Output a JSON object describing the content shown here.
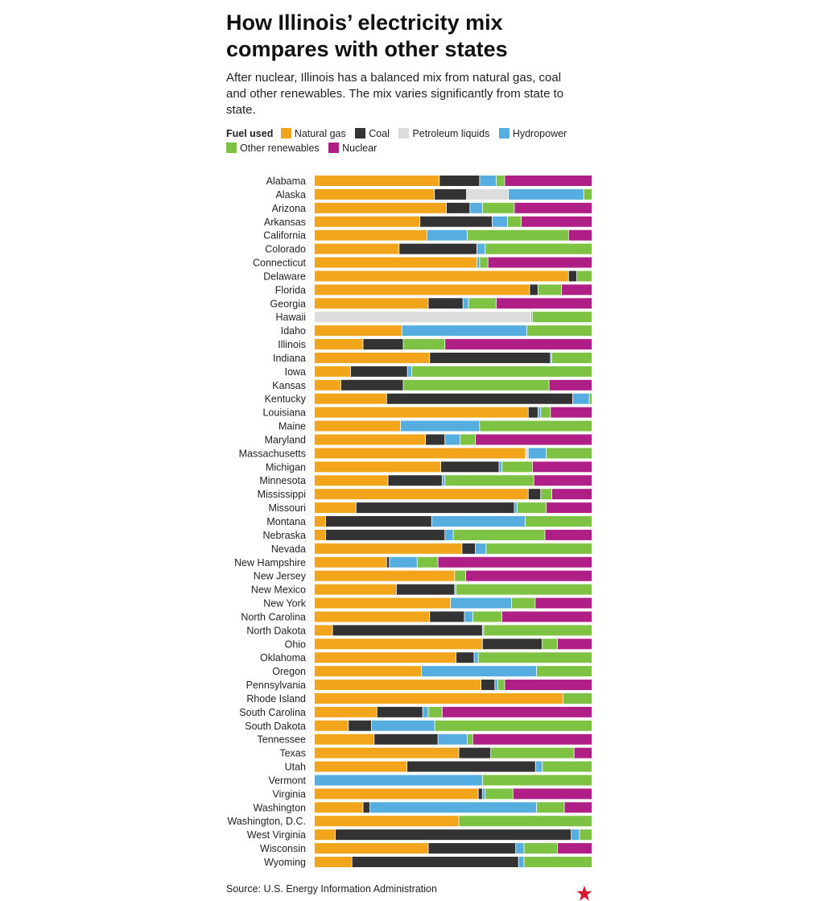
{
  "title": "How Illinois’ electricity mix compares with other states",
  "subtitle": "After nuclear, Illinois has a balanced mix from natural gas, coal and other renewables. The mix varies significantly from state to state.",
  "legend": {
    "label": "Fuel used",
    "items": [
      {
        "name": "Natural gas",
        "color": "#f2a51a"
      },
      {
        "name": "Coal",
        "color": "#333333"
      },
      {
        "name": "Petroleum liquids",
        "color": "#dcdcdc"
      },
      {
        "name": "Hydropower",
        "color": "#56aee0"
      },
      {
        "name": "Other renewables",
        "color": "#7dc242"
      },
      {
        "name": "Nuclear",
        "color": "#b01f86"
      }
    ]
  },
  "source": "Source: U.S. Energy Information Administration",
  "chart_data": {
    "type": "bar",
    "orientation": "horizontal",
    "stacked": true,
    "units": "percent share of electricity generation",
    "xlim": [
      0,
      100
    ],
    "categories": [
      "Alabama",
      "Alaska",
      "Arizona",
      "Arkansas",
      "California",
      "Colorado",
      "Connecticut",
      "Delaware",
      "Florida",
      "Georgia",
      "Hawaii",
      "Idaho",
      "Illinois",
      "Indiana",
      "Iowa",
      "Kansas",
      "Kentucky",
      "Louisiana",
      "Maine",
      "Maryland",
      "Massachusetts",
      "Michigan",
      "Minnesota",
      "Mississippi",
      "Missouri",
      "Montana",
      "Nebraska",
      "Nevada",
      "New Hampshire",
      "New Jersey",
      "New Mexico",
      "New York",
      "North Carolina",
      "North Dakota",
      "Ohio",
      "Oklahoma",
      "Oregon",
      "Pennsylvania",
      "Rhode Island",
      "South Carolina",
      "South Dakota",
      "Tennessee",
      "Texas",
      "Utah",
      "Vermont",
      "Virginia",
      "Washington",
      "Washington, D.C.",
      "West Virginia",
      "Wisconsin",
      "Wyoming"
    ],
    "series": [
      {
        "name": "Natural gas",
        "color": "#f2a51a",
        "values": [
          45,
          43,
          47.5,
          38,
          40.5,
          30.5,
          58.5,
          91.5,
          77.5,
          41,
          0,
          31.5,
          17.5,
          41.5,
          13,
          9.5,
          26,
          77,
          31,
          40,
          76,
          45.5,
          26.5,
          77,
          15,
          4,
          4,
          55,
          26,
          50.5,
          29.5,
          49,
          41.5,
          6.5,
          60.5,
          51,
          38.5,
          60,
          89.5,
          22.5,
          11,
          21.5,
          52,
          33.5,
          0,
          59,
          17.5,
          52,
          7.5,
          41,
          13.5
        ]
      },
      {
        "name": "Coal",
        "color": "#333333",
        "values": [
          14.5,
          11.5,
          8.5,
          26,
          0,
          28,
          0,
          3,
          3,
          12.5,
          0,
          0,
          14.5,
          43.5,
          20.5,
          22.5,
          67,
          3.5,
          0,
          7,
          0,
          21,
          19.5,
          4.5,
          57,
          38,
          43,
          5,
          1,
          0,
          21,
          0,
          12.5,
          54,
          21.5,
          6.5,
          0,
          5,
          0,
          16.5,
          7.5,
          23,
          11.5,
          46.5,
          0,
          1.5,
          2.5,
          0,
          85,
          31.5,
          60
        ]
      },
      {
        "name": "Petroleum liquids",
        "color": "#dcdcdc",
        "values": [
          0,
          15,
          0,
          0,
          0,
          0,
          0,
          0,
          0,
          0,
          78,
          0,
          0,
          0,
          0,
          0,
          0,
          0,
          0,
          0,
          1,
          0,
          0,
          0,
          0,
          0,
          0,
          0,
          0,
          0,
          0,
          0,
          0,
          0,
          0,
          0,
          0,
          0,
          0,
          0,
          0,
          0,
          0,
          0,
          0,
          0,
          0,
          0,
          0,
          0,
          0
        ]
      },
      {
        "name": "Hydropower",
        "color": "#56aee0",
        "values": [
          6,
          27,
          4.5,
          5.5,
          14.5,
          3,
          1,
          0,
          0,
          2,
          0.5,
          45,
          0,
          0.5,
          1.5,
          0,
          6,
          1,
          28.5,
          5.5,
          6.5,
          1,
          1,
          0,
          1,
          33.5,
          3,
          4,
          10,
          0,
          0.5,
          22,
          3,
          0.5,
          0,
          1.5,
          41.5,
          1,
          0,
          2,
          20.5,
          10.5,
          0,
          2.5,
          60.5,
          1,
          60,
          0,
          3,
          3,
          2
        ]
      },
      {
        "name": "Other renewables",
        "color": "#7dc242",
        "values": [
          3,
          3,
          11.5,
          5,
          36.5,
          38.5,
          3,
          5.5,
          8.5,
          10,
          21.5,
          23.5,
          15,
          14.5,
          65,
          52.5,
          1,
          3.5,
          40.5,
          5.5,
          16.5,
          11,
          32,
          4,
          10.5,
          24,
          33,
          39.5,
          7.5,
          4,
          49,
          8.5,
          10.5,
          39,
          5.5,
          41,
          20,
          2.5,
          10.5,
          5,
          51,
          2,
          30,
          18,
          39.5,
          10,
          10,
          48,
          4.5,
          12,
          24.5
        ]
      },
      {
        "name": "Nuclear",
        "color": "#b01f86",
        "values": [
          31.5,
          0,
          28,
          25.5,
          8.5,
          0,
          37.5,
          0,
          11,
          34.5,
          0,
          0,
          53,
          0,
          0,
          15.5,
          0,
          15,
          0,
          42,
          0,
          21.5,
          21,
          14.5,
          16.5,
          0,
          17,
          0,
          55.5,
          45.5,
          0,
          20.5,
          32.5,
          0,
          12.5,
          0,
          0,
          31.5,
          0,
          54,
          0,
          43,
          6.5,
          0,
          0,
          28.5,
          10,
          0,
          0,
          12.5,
          0
        ]
      }
    ]
  }
}
